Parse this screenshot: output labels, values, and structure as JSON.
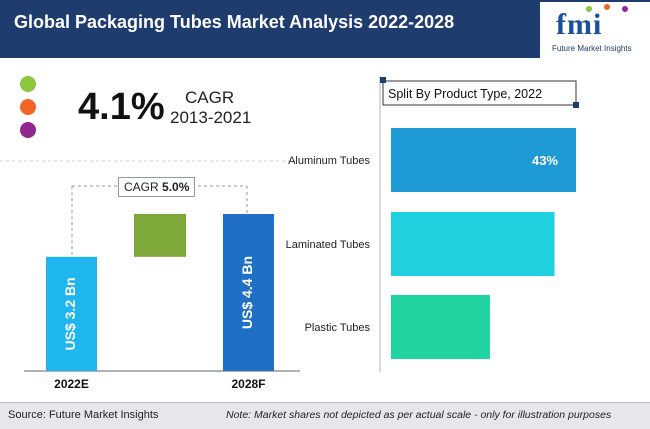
{
  "header": {
    "title": "Global Packaging Tubes Market Analysis 2022-2028"
  },
  "logo": {
    "mark": "fmi",
    "tagline": "Future Market Insights"
  },
  "legend_dots": [
    {
      "color": "#8dc63f"
    },
    {
      "color": "#f26522"
    },
    {
      "color": "#92278f"
    }
  ],
  "cagr": {
    "value": "4.1%",
    "label": "CAGR",
    "period": "2013-2021"
  },
  "chart_data": [
    {
      "type": "bar",
      "categories": [
        "2022E",
        "2028F"
      ],
      "values": [
        3.2,
        4.4
      ],
      "value_labels": [
        "US$ 3.2 Bn",
        "US$ 4.4 Bn"
      ],
      "bar_colors": [
        "#1fb6f0",
        "#1f6fc6"
      ],
      "increment_color": "#7ea83a",
      "cagr_label": "CAGR",
      "cagr_value": "5.0%"
    },
    {
      "type": "bar",
      "orientation": "horizontal",
      "title": "Split By Product Type, 2022",
      "categories": [
        "Aluminum Tubes",
        "Laminated Tubes",
        "Plastic Tubes"
      ],
      "values": [
        43,
        38,
        23
      ],
      "value_labels": [
        "43%",
        "",
        ""
      ],
      "bar_colors": [
        "#1e9bd7",
        "#1fd0df",
        "#20d3a0"
      ]
    }
  ],
  "footer": {
    "source": "Source: Future Market Insights",
    "note": "Note: Market shares not depicted as per actual scale - only for illustration purposes"
  }
}
